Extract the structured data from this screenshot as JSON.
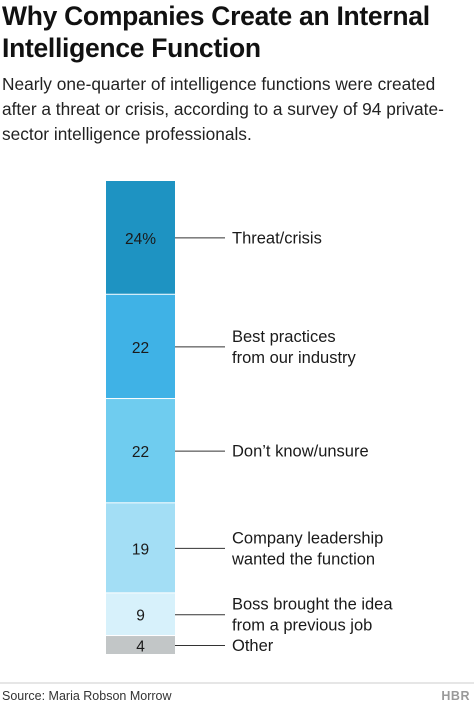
{
  "header": {
    "title": "Why Companies Create an Internal Intelligence Function",
    "subtitle": "Nearly one-quarter of intelligence functions were created after a threat or crisis, according to a survey of 94 private-sector intelligence professionals."
  },
  "footer": {
    "source": "Source: Maria Robson Morrow",
    "logo": "HBR"
  },
  "chart_data": {
    "type": "bar",
    "stacked": true,
    "orientation": "vertical",
    "unit": "%",
    "categories": [
      "Threat/crisis",
      "Best practices from our industry",
      "Don’t know/unsure",
      "Company leadership wanted the function",
      "Boss brought the idea from a previous job",
      "Other"
    ],
    "label_lines": [
      [
        "Threat/crisis"
      ],
      [
        "Best practices",
        "from our industry"
      ],
      [
        "Don’t know/unsure"
      ],
      [
        "Company leadership",
        "wanted the function"
      ],
      [
        "Boss brought the idea",
        "from a previous job"
      ],
      [
        "Other"
      ]
    ],
    "values": [
      24,
      22,
      22,
      19,
      9,
      4
    ],
    "value_labels": [
      "24%",
      "22",
      "22",
      "19",
      "9",
      "4"
    ],
    "colors": [
      "#1e93c2",
      "#3fb2e6",
      "#6fccef",
      "#a3def5",
      "#d7f1fb",
      "#c2c6c7"
    ],
    "legend": "none",
    "grid": false
  }
}
